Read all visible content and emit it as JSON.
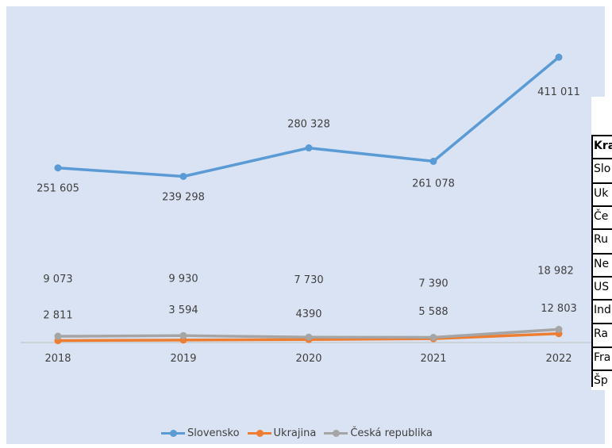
{
  "chart_data": {
    "type": "line",
    "categories": [
      "2018",
      "2019",
      "2020",
      "2021",
      "2022"
    ],
    "series": [
      {
        "name": "Slovensko",
        "color": "#5b9bd5",
        "values": [
          251605,
          239298,
          280328,
          261078,
          411011
        ],
        "labels": [
          "251 605",
          "239 298",
          "280 328",
          "261 078",
          "411 011"
        ]
      },
      {
        "name": "Ukrajina",
        "color": "#ed7d31",
        "values": [
          2811,
          3594,
          4390,
          5588,
          12803
        ],
        "labels": [
          "2 811",
          "3 594",
          "4390",
          "5 588",
          "12 803"
        ]
      },
      {
        "name": "Česká republika",
        "color": "#a5a5a5",
        "values": [
          9073,
          9930,
          7730,
          7390,
          18982
        ],
        "labels": [
          "9 073",
          "9 930",
          "7 730",
          "7 390",
          "18 982"
        ]
      }
    ],
    "ylim": [
      0,
      450000
    ],
    "legend": "bottom"
  },
  "table": {
    "rows": [
      "Kra",
      "Slo",
      "Uk",
      "Če",
      "Ru",
      "Ne",
      "US",
      "Ind",
      "Ra",
      "Fra",
      "Šp"
    ]
  }
}
